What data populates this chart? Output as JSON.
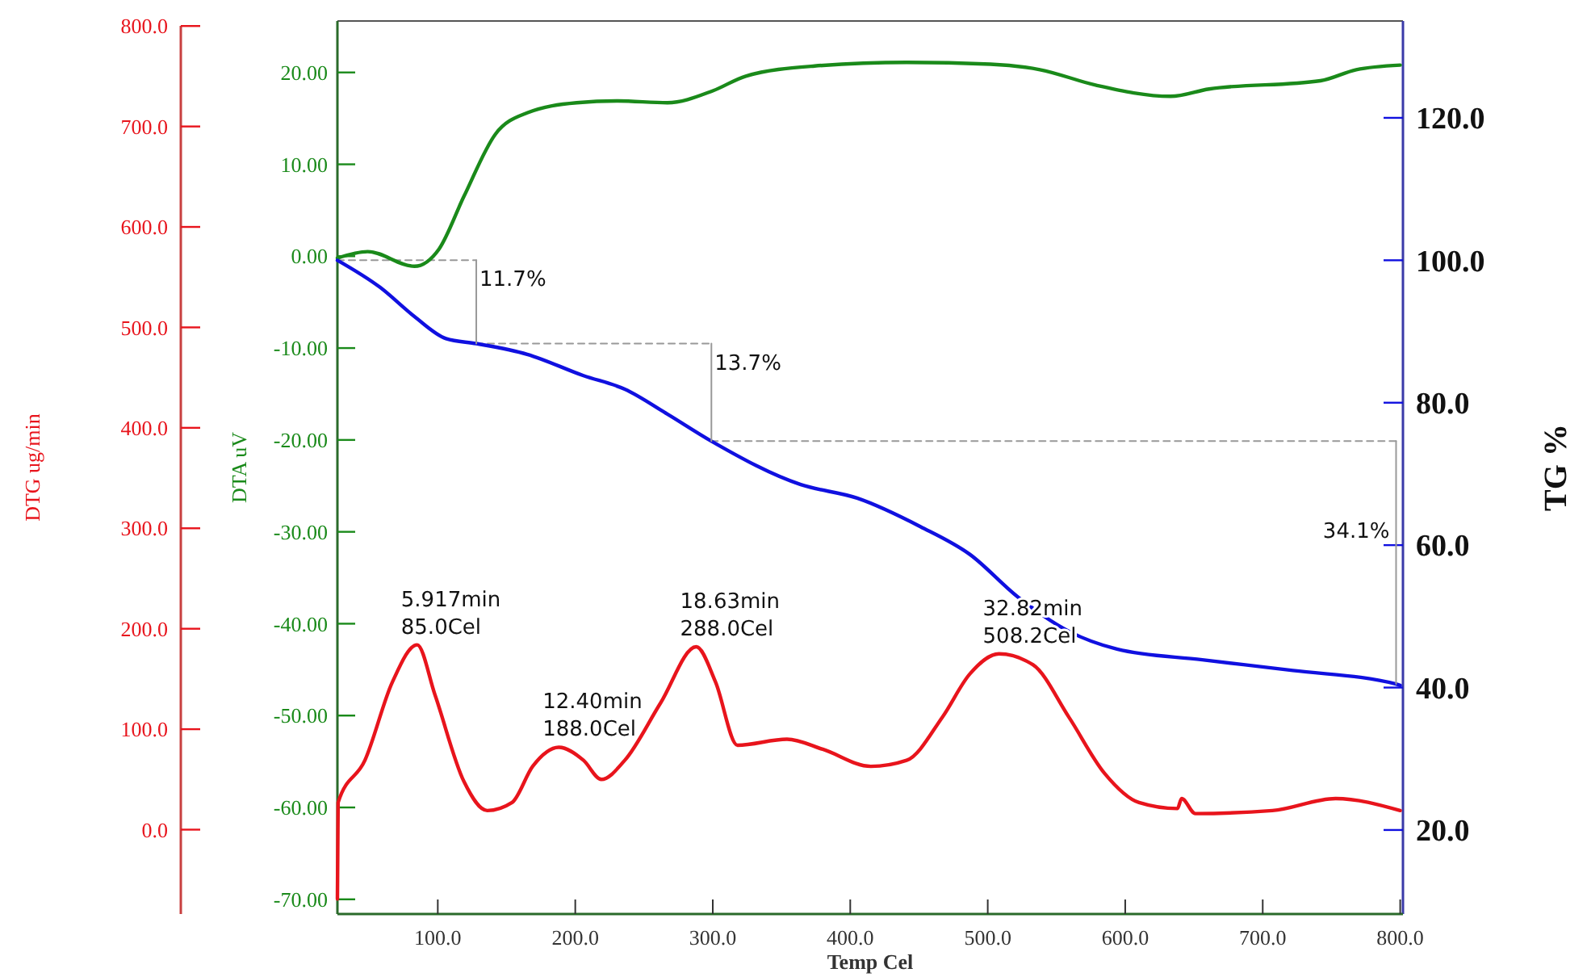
{
  "chart_data": {
    "type": "line",
    "xlabel": "Temp Cel",
    "ylabel": "DTG ug/min",
    "y2label": "DTA uV",
    "y3label": "TG %",
    "xlim": [
      27,
      802
    ],
    "xticks": [
      {
        "value": 100,
        "label": "100.0"
      },
      {
        "value": 200,
        "label": "200.0"
      },
      {
        "value": 300,
        "label": "300.0"
      },
      {
        "value": 400,
        "label": "400.0"
      },
      {
        "value": 500,
        "label": "500.0"
      },
      {
        "value": 600,
        "label": "600.0"
      },
      {
        "value": 700,
        "label": "700.0"
      },
      {
        "value": 800,
        "label": "800.0"
      }
    ],
    "ylim": [
      -84,
      805
    ],
    "yticks": [
      {
        "value": 0,
        "label": "0.0"
      },
      {
        "value": 100,
        "label": "100.0"
      },
      {
        "value": 200,
        "label": "200.0"
      },
      {
        "value": 300,
        "label": "300.0"
      },
      {
        "value": 400,
        "label": "400.0"
      },
      {
        "value": 500,
        "label": "500.0"
      },
      {
        "value": 600,
        "label": "600.0"
      },
      {
        "value": 700,
        "label": "700.0"
      },
      {
        "value": 800,
        "label": "800.0"
      }
    ],
    "y2lim": [
      -71.6,
      25.6
    ],
    "y2ticks": [
      {
        "value": -70,
        "label": "-70.00"
      },
      {
        "value": -60,
        "label": "-60.00"
      },
      {
        "value": -50,
        "label": "-50.00"
      },
      {
        "value": -40,
        "label": "-40.00"
      },
      {
        "value": -30,
        "label": "-30.00"
      },
      {
        "value": -20,
        "label": "-20.00"
      },
      {
        "value": -10,
        "label": "-10.00"
      },
      {
        "value": 0,
        "label": "0.00"
      },
      {
        "value": 10,
        "label": "10.00"
      },
      {
        "value": 20,
        "label": "20.00"
      }
    ],
    "y3lim": [
      8.2,
      133.6
    ],
    "y3ticks": [
      {
        "value": 20,
        "label": "20.0"
      },
      {
        "value": 40,
        "label": "40.0"
      },
      {
        "value": 60,
        "label": "60.0"
      },
      {
        "value": 80,
        "label": "80.0"
      },
      {
        "value": 100,
        "label": "100.0"
      },
      {
        "value": 120,
        "label": "120.0"
      }
    ],
    "series": [
      {
        "color": "#999999",
        "axis": "y3",
        "line_style": "dashed",
        "x": [
          27,
          128
        ],
        "values": [
          100,
          100
        ]
      },
      {
        "color": "#999999",
        "axis": "y3",
        "line_style": "dashed",
        "x": [
          128,
          299
        ],
        "values": [
          88.3,
          88.3
        ]
      },
      {
        "color": "#999999",
        "axis": "y3",
        "line_style": "dashed",
        "x": [
          299,
          797
        ],
        "values": [
          74.6,
          74.6
        ]
      },
      {
        "color": "#e8141c",
        "x": [
          27,
          27.5,
          47,
          67,
          85,
          98,
          119,
          136,
          154,
          169,
          188,
          206,
          219,
          236,
          262,
          288,
          302,
          318,
          354,
          380,
          415,
          441,
          467,
          487,
          508.2,
          533,
          559,
          585,
          610,
          638,
          641,
          651,
          707,
          753,
          800
        ],
        "values": [
          -69,
          27,
          69,
          147,
          184,
          134,
          48,
          19,
          27,
          63,
          82,
          69,
          50,
          69,
          126,
          182,
          147,
          84,
          90,
          80,
          63,
          69,
          112,
          155,
          175,
          164,
          112,
          56,
          27,
          21,
          31,
          16,
          19,
          31,
          19
        ]
      },
      {
        "color": "#1a8a1a",
        "axis": "y2",
        "x": [
          27,
          49,
          83,
          101,
          119,
          142,
          165,
          201,
          231,
          267,
          300,
          324,
          374,
          441,
          502,
          538,
          579,
          633,
          661,
          742,
          768,
          800
        ],
        "values": [
          -0.2,
          0.5,
          -1.1,
          0.8,
          6.5,
          13.3,
          15.6,
          16.7,
          16.9,
          16.7,
          18.0,
          19.6,
          20.7,
          21.1,
          20.9,
          20.3,
          18.6,
          17.4,
          18.2,
          19.1,
          20.3,
          20.8
        ]
      },
      {
        "color": "#1010e0",
        "axis": "y3",
        "x": [
          27,
          58,
          83,
          106,
          128,
          165,
          206,
          236,
          267,
          299,
          364,
          405,
          451,
          487,
          522,
          559,
          594,
          656,
          722,
          797,
          800
        ],
        "values": [
          100,
          96.2,
          92.1,
          89.0,
          88.3,
          86.8,
          83.8,
          81.9,
          78.4,
          74.6,
          68.5,
          66.6,
          62.6,
          58.7,
          52.7,
          47.9,
          45.4,
          43.9,
          42.4,
          40.5,
          40.3
        ]
      },
      {
        "color": "#999999",
        "axis": "y3",
        "x": [
          128,
          128
        ],
        "values": [
          100,
          88.3
        ]
      },
      {
        "color": "#999999",
        "axis": "y3",
        "x": [
          299,
          299
        ],
        "values": [
          88.3,
          74.6
        ]
      },
      {
        "color": "#999999",
        "axis": "y3",
        "x": [
          797,
          797
        ],
        "values": [
          74.6,
          40.5
        ]
      }
    ],
    "annotations": [
      {
        "text": "5.917min\n85.0Cel",
        "x": 85,
        "y": 184
      },
      {
        "text": "12.40min\n188.0Cel",
        "x": 188,
        "y": 82
      },
      {
        "text": "18.63min\n288.0Cel",
        "x": 288,
        "y": 182
      },
      {
        "text": "32.82min\n508.2Cel",
        "x": 508.2,
        "y": 175
      },
      "11.7%",
      "13.7%",
      "34.1%"
    ]
  }
}
